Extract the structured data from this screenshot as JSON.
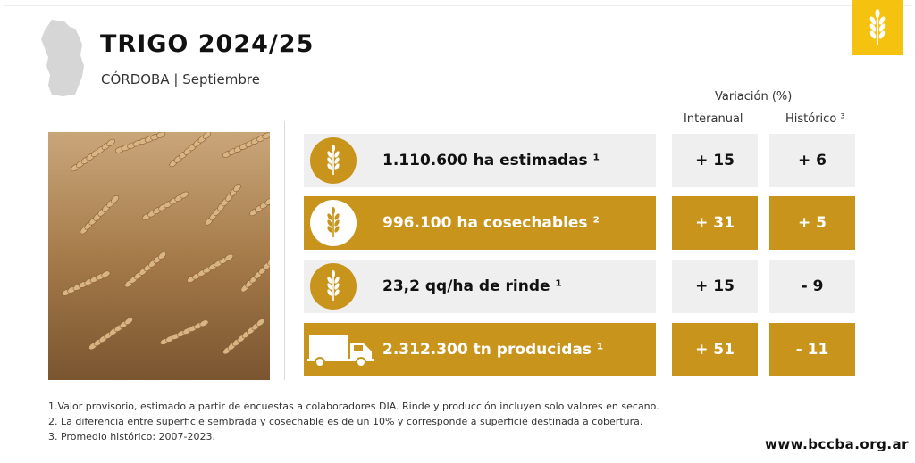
{
  "header": {
    "title": "TRIGO 2024/25",
    "subtitle": "CÓRDOBA | Septiembre"
  },
  "icons": {
    "province": "cordoba-map-icon",
    "brand": "wheat-icon",
    "row_icon": "wheat-icon",
    "truck": "truck-icon"
  },
  "table": {
    "variation_title": "Variación (%)",
    "col_interanual": "Interanual",
    "col_historico": "Histórico ³",
    "rows": [
      {
        "label": "1.110.600 ha estimadas ¹",
        "interanual": "+ 15",
        "historico": "+ 6",
        "style": "light"
      },
      {
        "label": "996.100 ha cosechables ²",
        "interanual": "+ 31",
        "historico": "+ 5",
        "style": "gold"
      },
      {
        "label": "23,2 qq/ha de rinde ¹",
        "interanual": "+ 15",
        "historico": "- 9",
        "style": "light"
      },
      {
        "label": "2.312.300 tn producidas ¹",
        "interanual": "+ 51",
        "historico": "- 11",
        "style": "gold"
      }
    ]
  },
  "notes": [
    "1.Valor provisorio, estimado a partir de encuestas a colaboradores DIA. Rinde y producción incluyen solo valores en secano.",
    "2. La diferencia entre superficie sembrada y cosechable es de un 10% y corresponde a superficie destinada a cobertura.",
    "3. Promedio histórico: 2007-2023."
  ],
  "footer": {
    "website": "www.bccba.org.ar"
  },
  "colors": {
    "gold": "#c8941c",
    "light": "#efefef",
    "badge": "#f5c20f",
    "province": "#d6d6d6"
  }
}
